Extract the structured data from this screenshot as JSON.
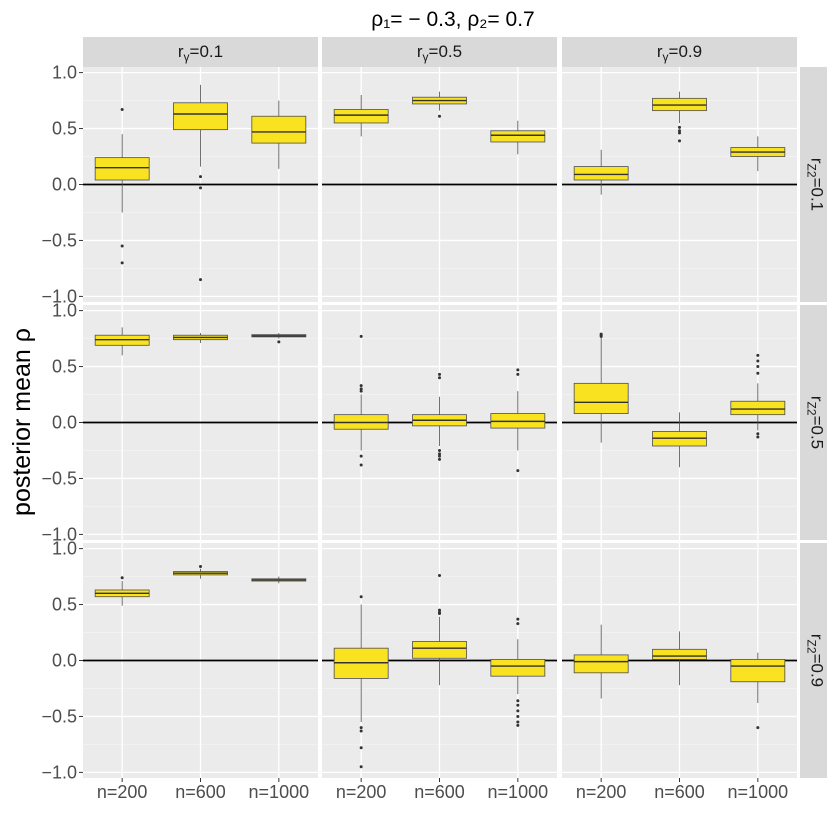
{
  "chart_data": {
    "type": "boxplot",
    "title": "ρ₁= − 0.3, ρ₂= 0.7",
    "ylabel": "posterior mean ρ",
    "xlabel": "",
    "ylim": [
      -1.05,
      1.05
    ],
    "y_ticks": [
      1.0,
      0.5,
      0.0,
      -0.5,
      -1.0
    ],
    "y_tick_labels": [
      "1.0",
      "0.5",
      "0.0",
      "−0.5",
      "−1.0"
    ],
    "reference_line": 0,
    "x_categories": [
      "n=200",
      "n=600",
      "n=1000"
    ],
    "col_strips": [
      {
        "label_base": "r",
        "label_sub": "γ",
        "label_rest": "=0.1"
      },
      {
        "label_base": "r",
        "label_sub": "γ",
        "label_rest": "=0.5"
      },
      {
        "label_base": "r",
        "label_sub": "γ",
        "label_rest": "=0.9"
      }
    ],
    "row_strips": [
      {
        "label_base": "r",
        "label_sub": "Z2",
        "label_rest": "=0.1"
      },
      {
        "label_base": "r",
        "label_sub": "Z2",
        "label_rest": "=0.5"
      },
      {
        "label_base": "r",
        "label_sub": "Z2",
        "label_rest": "=0.9"
      }
    ],
    "fill_color": "#f9e320",
    "panels": [
      [
        [
          {
            "q1": 0.04,
            "median": 0.15,
            "q3": 0.24,
            "whisker_low": -0.25,
            "whisker_high": 0.45,
            "outliers": [
              0.67,
              -0.55,
              -0.7
            ]
          },
          {
            "q1": 0.49,
            "median": 0.63,
            "q3": 0.73,
            "whisker_low": 0.16,
            "whisker_high": 0.89,
            "outliers": [
              0.07,
              -0.03,
              -0.85
            ]
          },
          {
            "q1": 0.37,
            "median": 0.47,
            "q3": 0.61,
            "whisker_low": 0.14,
            "whisker_high": 0.75,
            "outliers": []
          }
        ],
        [
          {
            "q1": 0.55,
            "median": 0.62,
            "q3": 0.67,
            "whisker_low": 0.43,
            "whisker_high": 0.8,
            "outliers": []
          },
          {
            "q1": 0.72,
            "median": 0.75,
            "q3": 0.78,
            "whisker_low": 0.66,
            "whisker_high": 0.83,
            "outliers": [
              0.61
            ]
          },
          {
            "q1": 0.38,
            "median": 0.44,
            "q3": 0.48,
            "whisker_low": 0.27,
            "whisker_high": 0.57,
            "outliers": []
          }
        ],
        [
          {
            "q1": 0.04,
            "median": 0.09,
            "q3": 0.16,
            "whisker_low": -0.09,
            "whisker_high": 0.31,
            "outliers": []
          },
          {
            "q1": 0.66,
            "median": 0.71,
            "q3": 0.77,
            "whisker_low": 0.55,
            "whisker_high": 0.83,
            "outliers": [
              0.51,
              0.48,
              0.46,
              0.39
            ]
          },
          {
            "q1": 0.25,
            "median": 0.29,
            "q3": 0.33,
            "whisker_low": 0.12,
            "whisker_high": 0.43,
            "outliers": []
          }
        ]
      ],
      [
        [
          {
            "q1": 0.69,
            "median": 0.74,
            "q3": 0.78,
            "whisker_low": 0.6,
            "whisker_high": 0.85,
            "outliers": []
          },
          {
            "q1": 0.74,
            "median": 0.76,
            "q3": 0.78,
            "whisker_low": 0.71,
            "whisker_high": 0.8,
            "outliers": []
          },
          {
            "q1": 0.765,
            "median": 0.775,
            "q3": 0.785,
            "whisker_low": 0.75,
            "whisker_high": 0.8,
            "outliers": [
              0.72
            ]
          }
        ],
        [
          {
            "q1": -0.06,
            "median": 0.0,
            "q3": 0.07,
            "whisker_low": -0.25,
            "whisker_high": 0.25,
            "outliers": [
              0.77,
              0.33,
              0.3,
              0.28,
              -0.3,
              -0.38
            ]
          },
          {
            "q1": -0.03,
            "median": 0.02,
            "q3": 0.07,
            "whisker_low": -0.21,
            "whisker_high": 0.23,
            "outliers": [
              0.43,
              0.4,
              -0.25,
              -0.28,
              -0.3,
              -0.33
            ]
          },
          {
            "q1": -0.05,
            "median": 0.01,
            "q3": 0.08,
            "whisker_low": -0.25,
            "whisker_high": 0.28,
            "outliers": [
              0.47,
              0.43,
              -0.43
            ]
          }
        ],
        [
          {
            "q1": 0.08,
            "median": 0.18,
            "q3": 0.35,
            "whisker_low": -0.18,
            "whisker_high": 0.76,
            "outliers": [
              0.79,
              0.78,
              0.77
            ]
          },
          {
            "q1": -0.21,
            "median": -0.14,
            "q3": -0.08,
            "whisker_low": -0.4,
            "whisker_high": 0.09,
            "outliers": []
          },
          {
            "q1": 0.07,
            "median": 0.12,
            "q3": 0.19,
            "whisker_low": -0.07,
            "whisker_high": 0.35,
            "outliers": [
              0.6,
              0.55,
              0.5,
              0.44,
              -0.1,
              -0.13
            ]
          }
        ]
      ],
      [
        [
          {
            "q1": 0.57,
            "median": 0.6,
            "q3": 0.63,
            "whisker_low": 0.49,
            "whisker_high": 0.71,
            "outliers": [
              0.74
            ]
          },
          {
            "q1": 0.765,
            "median": 0.78,
            "q3": 0.795,
            "whisker_low": 0.73,
            "whisker_high": 0.82,
            "outliers": [
              0.84
            ]
          },
          {
            "q1": 0.71,
            "median": 0.72,
            "q3": 0.73,
            "whisker_low": 0.69,
            "whisker_high": 0.75,
            "outliers": []
          }
        ],
        [
          {
            "q1": -0.16,
            "median": -0.02,
            "q3": 0.11,
            "whisker_low": -0.55,
            "whisker_high": 0.5,
            "outliers": [
              0.57,
              -0.6,
              -0.63,
              -0.78,
              -0.95
            ]
          },
          {
            "q1": 0.02,
            "median": 0.11,
            "q3": 0.17,
            "whisker_low": -0.22,
            "whisker_high": 0.39,
            "outliers": [
              0.76,
              0.45,
              0.43,
              0.42
            ]
          },
          {
            "q1": -0.14,
            "median": -0.05,
            "q3": 0.01,
            "whisker_low": -0.3,
            "whisker_high": 0.19,
            "outliers": [
              0.37,
              0.33,
              -0.36,
              -0.4,
              -0.45,
              -0.5,
              -0.55,
              -0.58
            ]
          }
        ],
        [
          {
            "q1": -0.11,
            "median": -0.01,
            "q3": 0.05,
            "whisker_low": -0.34,
            "whisker_high": 0.32,
            "outliers": []
          },
          {
            "q1": 0.01,
            "median": 0.04,
            "q3": 0.1,
            "whisker_low": -0.22,
            "whisker_high": 0.26,
            "outliers": []
          },
          {
            "q1": -0.19,
            "median": -0.05,
            "q3": 0.01,
            "whisker_low": -0.38,
            "whisker_high": 0.07,
            "outliers": [
              -0.6
            ]
          }
        ]
      ]
    ]
  }
}
